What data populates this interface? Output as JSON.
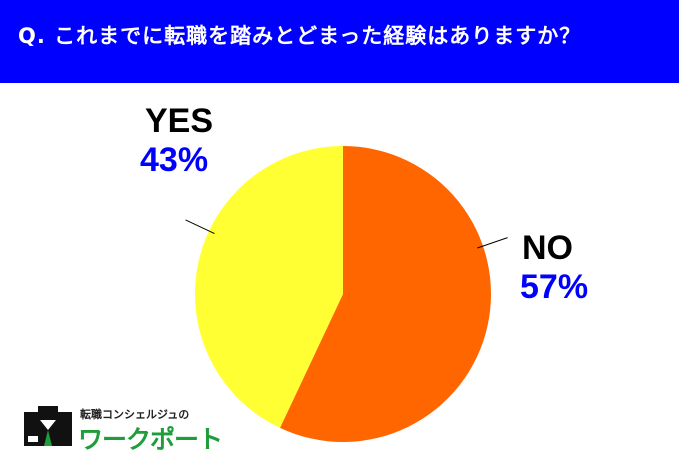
{
  "header": {
    "question": "Q.  これまでに転職を踏みとどまった経験はありますか？"
  },
  "chart_data": {
    "type": "pie",
    "categories": [
      "NO",
      "YES"
    ],
    "values": [
      57,
      43
    ],
    "value_labels": [
      "57%",
      "43%"
    ],
    "colors": [
      "#ff6600",
      "#ffff33"
    ],
    "label_color": "#0000ff",
    "title": "",
    "legend": "none"
  },
  "logo": {
    "tagline": "転職コンシェルジュの",
    "name": "ワークポート",
    "brand_color": "#1f9d3a"
  }
}
